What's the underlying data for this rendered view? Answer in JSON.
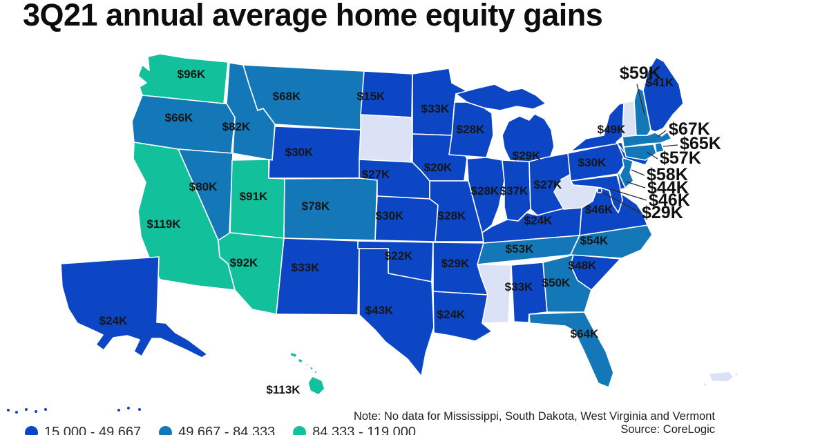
{
  "title": "3Q21 annual average home equity gains",
  "note": "Note: No data for Mississippi, South Dakota, West Virginia and Vermont",
  "source": "Source: CoreLogic",
  "legend": {
    "items": [
      {
        "label": "15,000 - 49,667",
        "color": "#0c46c4"
      },
      {
        "label": "49,667 - 84,333",
        "color": "#1478b8"
      },
      {
        "label": "84,333 - 119,000",
        "color": "#12c09c"
      }
    ],
    "no_data_color": "#dbe2f6"
  },
  "chart_data": {
    "type": "choropleth",
    "region": "United States by state",
    "metric": "3Q21 annual average home equity gain (USD)",
    "bins": [
      "15,000 - 49,667",
      "49,667 - 84,333",
      "84,333 - 119,000"
    ],
    "no_data_states": [
      "Mississippi",
      "South Dakota",
      "West Virginia",
      "Vermont"
    ],
    "territories_no_data": [
      "Puerto Rico"
    ],
    "states": [
      {
        "abbr": "WA",
        "name": "Washington",
        "label": "$96K",
        "value": 96000,
        "bin": 3
      },
      {
        "abbr": "OR",
        "name": "Oregon",
        "label": "$66K",
        "value": 66000,
        "bin": 2
      },
      {
        "abbr": "CA",
        "name": "California",
        "label": "$119K",
        "value": 119000,
        "bin": 3
      },
      {
        "abbr": "NV",
        "name": "Nevada",
        "label": "$80K",
        "value": 80000,
        "bin": 2
      },
      {
        "abbr": "ID",
        "name": "Idaho",
        "label": "$82K",
        "value": 82000,
        "bin": 2
      },
      {
        "abbr": "MT",
        "name": "Montana",
        "label": "$68K",
        "value": 68000,
        "bin": 2
      },
      {
        "abbr": "WY",
        "name": "Wyoming",
        "label": "$30K",
        "value": 30000,
        "bin": 1
      },
      {
        "abbr": "UT",
        "name": "Utah",
        "label": "$91K",
        "value": 91000,
        "bin": 3
      },
      {
        "abbr": "AZ",
        "name": "Arizona",
        "label": "$92K",
        "value": 92000,
        "bin": 3
      },
      {
        "abbr": "CO",
        "name": "Colorado",
        "label": "$78K",
        "value": 78000,
        "bin": 2
      },
      {
        "abbr": "NM",
        "name": "New Mexico",
        "label": "$33K",
        "value": 33000,
        "bin": 1
      },
      {
        "abbr": "ND",
        "name": "North Dakota",
        "label": "$15K",
        "value": 15000,
        "bin": 1
      },
      {
        "abbr": "SD",
        "name": "South Dakota",
        "label": null,
        "value": null,
        "bin": null
      },
      {
        "abbr": "NE",
        "name": "Nebraska",
        "label": "$27K",
        "value": 27000,
        "bin": 1
      },
      {
        "abbr": "KS",
        "name": "Kansas",
        "label": "$30K",
        "value": 30000,
        "bin": 1
      },
      {
        "abbr": "OK",
        "name": "Oklahoma",
        "label": "$22K",
        "value": 22000,
        "bin": 1
      },
      {
        "abbr": "TX",
        "name": "Texas",
        "label": "$43K",
        "value": 43000,
        "bin": 1
      },
      {
        "abbr": "MN",
        "name": "Minnesota",
        "label": "$33K",
        "value": 33000,
        "bin": 1
      },
      {
        "abbr": "IA",
        "name": "Iowa",
        "label": "$20K",
        "value": 20000,
        "bin": 1
      },
      {
        "abbr": "MO",
        "name": "Missouri",
        "label": "$28K",
        "value": 28000,
        "bin": 1
      },
      {
        "abbr": "AR",
        "name": "Arkansas",
        "label": "$29K",
        "value": 29000,
        "bin": 1
      },
      {
        "abbr": "LA",
        "name": "Louisiana",
        "label": "$24K",
        "value": 24000,
        "bin": 1
      },
      {
        "abbr": "WI",
        "name": "Wisconsin",
        "label": "$28K",
        "value": 28000,
        "bin": 1
      },
      {
        "abbr": "IL",
        "name": "Illinois",
        "label": "$28K",
        "value": 28000,
        "bin": 1
      },
      {
        "abbr": "MI",
        "name": "Michigan",
        "label": "$29K",
        "value": 29000,
        "bin": 1
      },
      {
        "abbr": "IN",
        "name": "Indiana",
        "label": "$37K",
        "value": 37000,
        "bin": 1
      },
      {
        "abbr": "OH",
        "name": "Ohio",
        "label": "$27K",
        "value": 27000,
        "bin": 1
      },
      {
        "abbr": "KY",
        "name": "Kentucky",
        "label": "$24K",
        "value": 24000,
        "bin": 1
      },
      {
        "abbr": "TN",
        "name": "Tennessee",
        "label": "$53K",
        "value": 53000,
        "bin": 2
      },
      {
        "abbr": "MS",
        "name": "Mississippi",
        "label": null,
        "value": null,
        "bin": null
      },
      {
        "abbr": "AL",
        "name": "Alabama",
        "label": "$33K",
        "value": 33000,
        "bin": 1
      },
      {
        "abbr": "GA",
        "name": "Georgia",
        "label": "$50K",
        "value": 50000,
        "bin": 2
      },
      {
        "abbr": "FL",
        "name": "Florida",
        "label": "$64K",
        "value": 64000,
        "bin": 2
      },
      {
        "abbr": "SC",
        "name": "South Carolina",
        "label": "$48K",
        "value": 48000,
        "bin": 1
      },
      {
        "abbr": "NC",
        "name": "North Carolina",
        "label": "$54K",
        "value": 54000,
        "bin": 2
      },
      {
        "abbr": "VA",
        "name": "Virginia",
        "label": "$46K",
        "value": 46000,
        "bin": 1
      },
      {
        "abbr": "WV",
        "name": "West Virginia",
        "label": null,
        "value": null,
        "bin": null
      },
      {
        "abbr": "MD",
        "name": "Maryland",
        "label": "$46K",
        "value": 46000,
        "bin": 1
      },
      {
        "abbr": "DE",
        "name": "Delaware",
        "label": "$44K",
        "value": 44000,
        "bin": 1
      },
      {
        "abbr": "DC",
        "name": "District of Columbia",
        "label": "$29K",
        "value": 29000,
        "bin": 1
      },
      {
        "abbr": "PA",
        "name": "Pennsylvania",
        "label": "$30K",
        "value": 30000,
        "bin": 1
      },
      {
        "abbr": "NJ",
        "name": "New Jersey",
        "label": "$58K",
        "value": 58000,
        "bin": 2
      },
      {
        "abbr": "NY",
        "name": "New York",
        "label": "$49K",
        "value": 49000,
        "bin": 1
      },
      {
        "abbr": "CT",
        "name": "Connecticut",
        "label": "$57K",
        "value": 57000,
        "bin": 2
      },
      {
        "abbr": "RI",
        "name": "Rhode Island",
        "label": "$65K",
        "value": 65000,
        "bin": 2
      },
      {
        "abbr": "MA",
        "name": "Massachusetts",
        "label": "$67K",
        "value": 67000,
        "bin": 2
      },
      {
        "abbr": "VT",
        "name": "Vermont",
        "label": null,
        "value": null,
        "bin": null
      },
      {
        "abbr": "NH",
        "name": "New Hampshire",
        "label": "$59K",
        "value": 59000,
        "bin": 2
      },
      {
        "abbr": "ME",
        "name": "Maine",
        "label": "$41K",
        "value": 41000,
        "bin": 1
      },
      {
        "abbr": "AK",
        "name": "Alaska",
        "label": "$24K",
        "value": 24000,
        "bin": 1
      },
      {
        "abbr": "HI",
        "name": "Hawaii",
        "label": "$113K",
        "value": 113000,
        "bin": 3
      },
      {
        "abbr": "PR",
        "name": "Puerto Rico",
        "label": null,
        "value": null,
        "bin": null
      }
    ]
  }
}
